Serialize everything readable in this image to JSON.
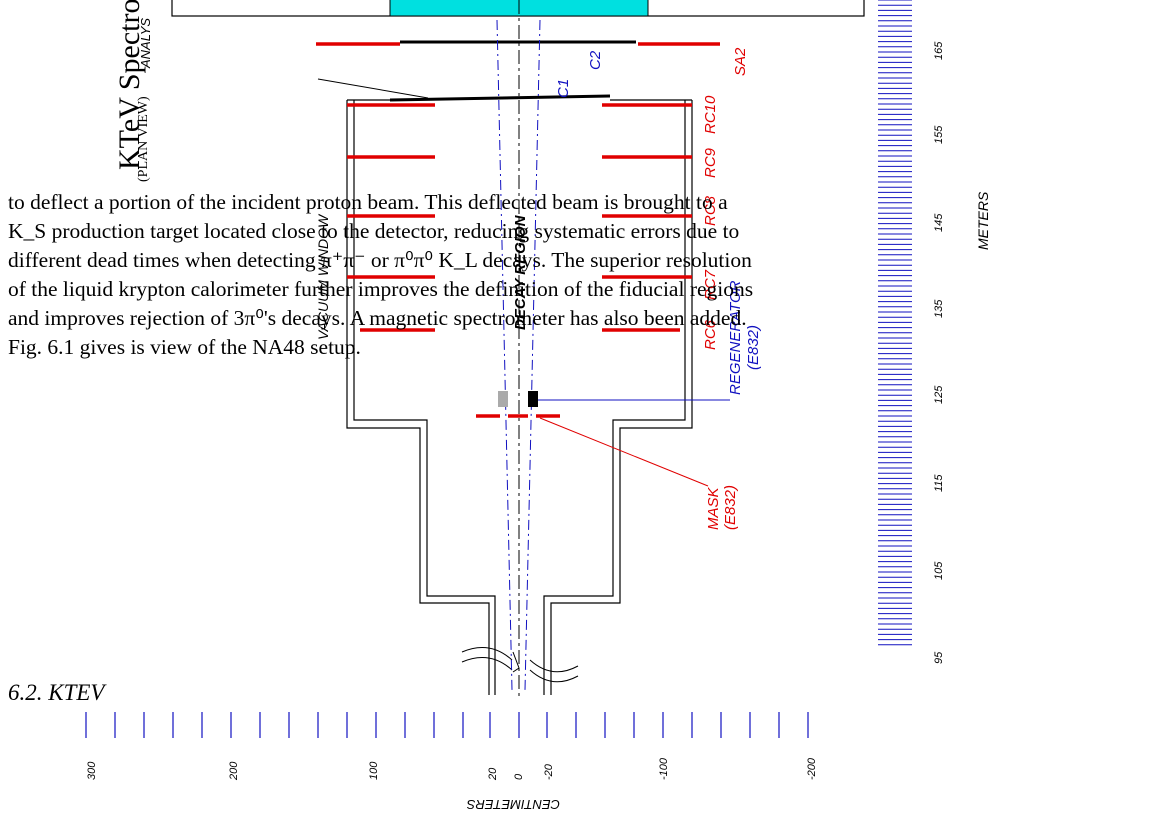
{
  "title": "KTeV Spectrometer",
  "subtitle": "(PLAN VIEW)",
  "labels": {
    "analysis": "ANALYS",
    "vacuum_window": "VACUUM WINDOW",
    "decay_region": "DECAY REGION",
    "meters": "METERS",
    "centimeters": "CENTIMETERS",
    "mask": "MASK",
    "mask_sub": "(E832)",
    "regenerator": "REGENERATOR",
    "regenerator_sub": "(E832)",
    "c1": "C1",
    "c2": "C2",
    "sa2": "SA2",
    "rc10": "RC10",
    "rc9": "RC9",
    "rc8": "RC8",
    "rc7": "RC7",
    "rc6": "RC6"
  },
  "meter_ticks": [
    "165",
    "155",
    "145",
    "135",
    "125",
    "115",
    "105",
    "95"
  ],
  "cm_ticks": [
    "300",
    "200",
    "100",
    "20",
    "0",
    "-20",
    "-100",
    "-200"
  ],
  "paragraph": {
    "line1": "to deflect a portion of the incident proton beam. This deflected beam is brought to a",
    "line2": "K_S production target located close to the detector, reducing systematic errors due to",
    "line3": "different dead times when detecting π⁺π⁻ or π⁰π⁰ K_L decays. The superior resolution",
    "line4": "of the liquid krypton calorimeter further improves the definition of the fiducial regions",
    "line5": "and improves rejection of 3π⁰'s decays. A magnetic spectrometer has also been added.",
    "line6": "Fig. 6.1 gives is view of the NA48 setup."
  },
  "section_heading": "6.2. KTEV",
  "colors": {
    "red": "#e00000",
    "blue": "#1010c0",
    "cyan": "#00e0e0",
    "black": "#000000"
  }
}
